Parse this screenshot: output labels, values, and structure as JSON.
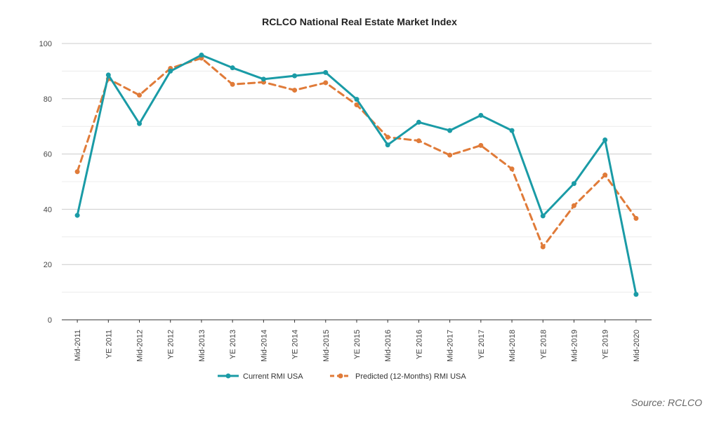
{
  "chart_data": {
    "type": "line",
    "title": "RCLCO National Real Estate Market Index",
    "categories": [
      "Mid-2011",
      "YE 2011",
      "Mid-2012",
      "YE 2012",
      "Mid-2013",
      "YE 2013",
      "Mid-2014",
      "YE 2014",
      "Mid-2015",
      "YE 2015",
      "Mid-2016",
      "YE 2016",
      "Mid-2017",
      "YE 2017",
      "Mid-2018",
      "YE 2018",
      "Mid-2019",
      "YE 2019",
      "Mid-2020"
    ],
    "ylim": [
      0,
      100
    ],
    "yticks": [
      0,
      20,
      40,
      60,
      80,
      100
    ],
    "grid": true,
    "legend_position": "bottom",
    "series": [
      {
        "name": "Current RMI USA",
        "color": "#1a9ba6",
        "style": "solid",
        "values": [
          37.8,
          88.6,
          71,
          90,
          95.8,
          91.2,
          87.1,
          88.3,
          89.5,
          79.8,
          63.3,
          71.5,
          68.5,
          74,
          68.5,
          37.6,
          49.3,
          65.1,
          9.2
        ]
      },
      {
        "name": "Predicted (12-Months) RMI USA",
        "color": "#e07b39",
        "style": "dashed",
        "values": [
          53.6,
          87.2,
          81.3,
          91,
          94.7,
          85.2,
          86,
          83.1,
          85.8,
          77.8,
          66.1,
          64.8,
          59.6,
          63.1,
          54.6,
          26.4,
          41.3,
          52.4,
          36.7
        ]
      }
    ]
  },
  "source": "Source: RCLCO"
}
